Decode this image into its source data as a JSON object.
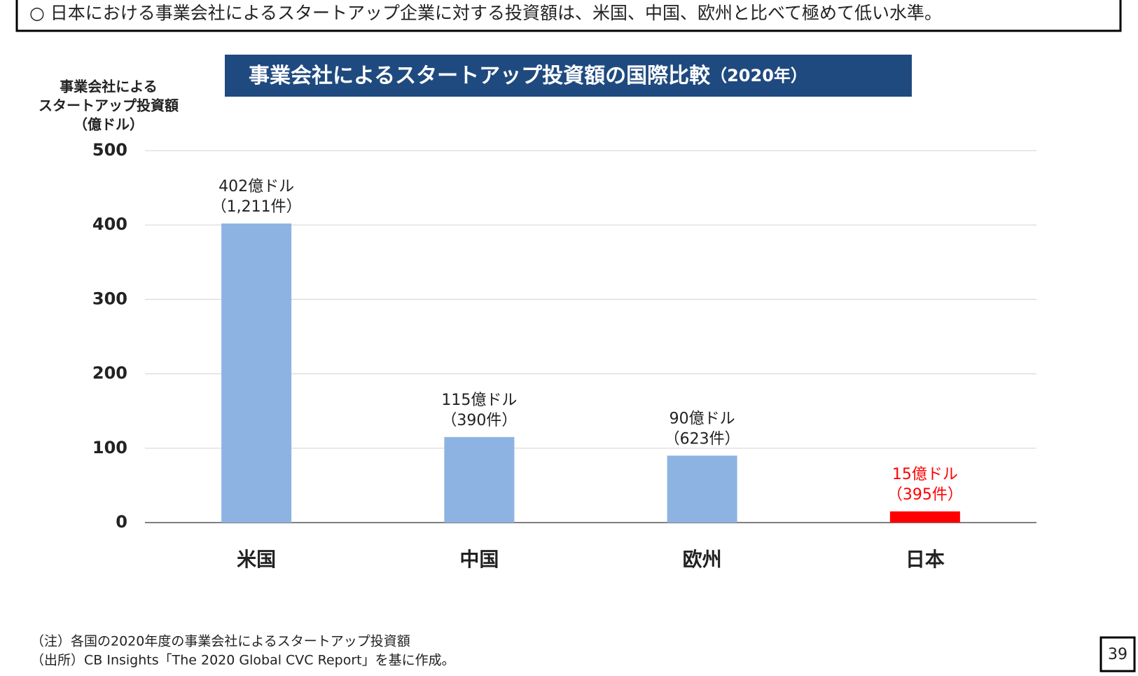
{
  "header": {
    "text": "○ 日本における事業会社によるスタートアップ企業に対する投資額は、米国、中国、欧州と比べて極めて低い水準。"
  },
  "chart_data": {
    "type": "bar",
    "title": "事業会社によるスタートアップ投資額の国際比較",
    "title_suffix": "（2020年）",
    "ylabel": [
      "事業会社による",
      "スタートアップ投資額",
      "（億ドル）"
    ],
    "categories": [
      "米国",
      "中国",
      "欧州",
      "日本"
    ],
    "values": [
      402,
      115,
      90,
      15
    ],
    "value_labels": [
      "402億ドル",
      "115億ドル",
      "90億ドル",
      "15億ドル"
    ],
    "count_labels": [
      "（1,211件）",
      "（390件）",
      "（623件）",
      "（395件）"
    ],
    "colors": [
      "#8db3e2",
      "#8db3e2",
      "#8db3e2",
      "#ff0000"
    ],
    "value_label_colors": [
      "#222222",
      "#222222",
      "#222222",
      "#ff0000"
    ],
    "ylim": [
      0,
      500
    ],
    "yticks": [
      0,
      100,
      200,
      300,
      400,
      500
    ],
    "grid": true
  },
  "notes": [
    "（注）各国の2020年度の事業会社によるスタートアップ投資額",
    "（出所）CB Insights「The 2020 Global CVC Report」を基に作成。"
  ],
  "page_number": "39"
}
